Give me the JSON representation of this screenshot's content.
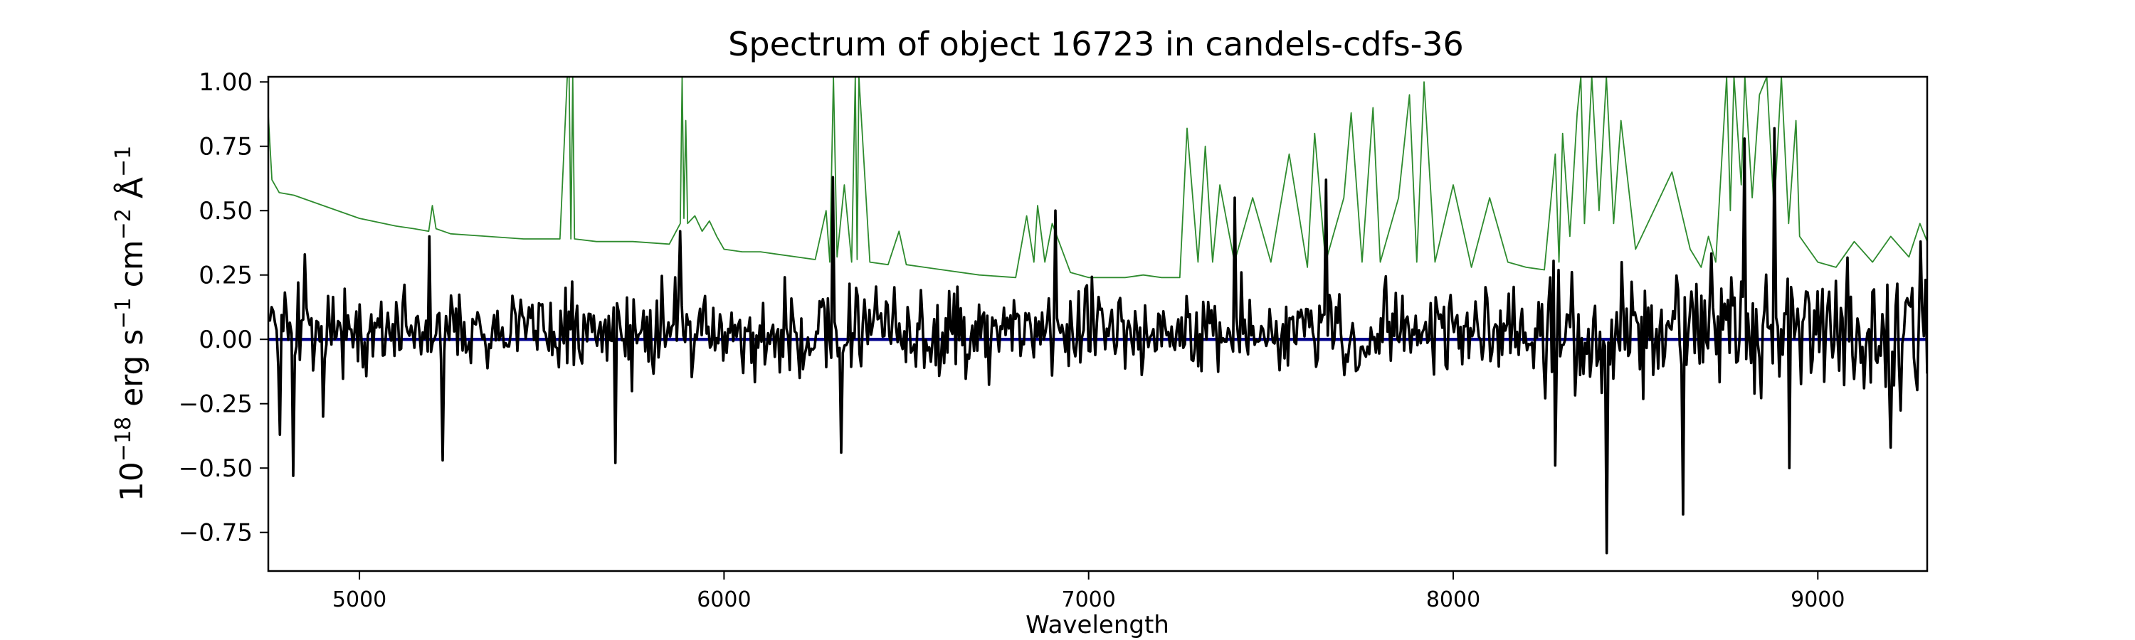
{
  "chart_data": {
    "type": "line",
    "title": "Spectrum of object 16723 in candels-cdfs-36",
    "xlabel": "Wavelength",
    "ylabel_parts": {
      "base": "10",
      "exp": "−18",
      "unit1": " erg s",
      "unit1_exp": "−1",
      "unit2": " cm",
      "unit2_exp": "−2",
      "unit3": " Å",
      "unit3_exp": "−1"
    },
    "xlim": [
      4750,
      9300
    ],
    "ylim": [
      -0.9,
      1.02
    ],
    "xticks": [
      5000,
      6000,
      7000,
      8000,
      9000
    ],
    "xtick_labels": [
      "5000",
      "6000",
      "7000",
      "8000",
      "9000"
    ],
    "yticks": [
      -0.75,
      -0.5,
      -0.25,
      0.0,
      0.25,
      0.5,
      0.75,
      1.0
    ],
    "ytick_labels": [
      "−0.75",
      "−0.50",
      "−0.25",
      "0.00",
      "0.25",
      "0.50",
      "0.75",
      "1.00"
    ],
    "grid": false,
    "legend": "none",
    "series": [
      {
        "role": "error",
        "color": "#2e8b2e",
        "x": [
          4750,
          4760,
          4780,
          4820,
          4900,
          5000,
          5100,
          5150,
          5190,
          5200,
          5210,
          5250,
          5350,
          5450,
          5550,
          5570,
          5575,
          5580,
          5585,
          5590,
          5650,
          5750,
          5850,
          5880,
          5885,
          5890,
          5895,
          5900,
          5920,
          5940,
          5960,
          5980,
          6000,
          6050,
          6100,
          6150,
          6200,
          6250,
          6280,
          6290,
          6300,
          6310,
          6330,
          6350,
          6360,
          6365,
          6370,
          6400,
          6450,
          6480,
          6500,
          6550,
          6600,
          6700,
          6800,
          6830,
          6850,
          6860,
          6880,
          6900,
          6950,
          7000,
          7050,
          7100,
          7150,
          7200,
          7250,
          7270,
          7300,
          7320,
          7340,
          7360,
          7400,
          7450,
          7500,
          7550,
          7600,
          7620,
          7650,
          7700,
          7720,
          7750,
          7780,
          7800,
          7850,
          7880,
          7900,
          7920,
          7950,
          8000,
          8050,
          8100,
          8150,
          8200,
          8250,
          8280,
          8290,
          8300,
          8320,
          8340,
          8350,
          8360,
          8380,
          8400,
          8420,
          8440,
          8460,
          8500,
          8550,
          8600,
          8650,
          8680,
          8700,
          8720,
          8750,
          8760,
          8770,
          8790,
          8800,
          8820,
          8840,
          8860,
          8880,
          8900,
          8920,
          8940,
          8950,
          9000,
          9050,
          9100,
          9150,
          9200,
          9250,
          9280,
          9300
        ],
        "y": [
          0.87,
          0.62,
          0.57,
          0.56,
          0.52,
          0.47,
          0.44,
          0.43,
          0.42,
          0.52,
          0.43,
          0.41,
          0.4,
          0.39,
          0.39,
          1.02,
          1.02,
          0.39,
          1.02,
          0.39,
          0.38,
          0.38,
          0.37,
          0.45,
          1.02,
          0.47,
          0.85,
          0.45,
          0.48,
          0.42,
          0.46,
          0.4,
          0.35,
          0.34,
          0.34,
          0.33,
          0.32,
          0.31,
          0.5,
          0.3,
          1.02,
          0.32,
          0.6,
          0.3,
          1.02,
          0.31,
          1.02,
          0.3,
          0.29,
          0.42,
          0.29,
          0.28,
          0.27,
          0.25,
          0.24,
          0.48,
          0.3,
          0.52,
          0.3,
          0.45,
          0.26,
          0.24,
          0.24,
          0.24,
          0.25,
          0.24,
          0.24,
          0.82,
          0.3,
          0.75,
          0.3,
          0.6,
          0.3,
          0.55,
          0.3,
          0.72,
          0.28,
          0.8,
          0.3,
          0.55,
          0.88,
          0.3,
          0.9,
          0.3,
          0.55,
          0.95,
          0.3,
          1.0,
          0.3,
          0.6,
          0.28,
          0.55,
          0.3,
          0.28,
          0.27,
          0.72,
          0.3,
          0.8,
          0.4,
          0.88,
          1.02,
          0.45,
          1.02,
          0.5,
          1.02,
          0.45,
          0.85,
          0.35,
          0.5,
          0.65,
          0.35,
          0.28,
          0.4,
          0.3,
          1.02,
          0.5,
          1.02,
          0.6,
          1.02,
          0.55,
          0.95,
          1.02,
          0.5,
          1.02,
          0.45,
          0.85,
          0.4,
          0.3,
          0.28,
          0.38,
          0.3,
          0.4,
          0.32,
          0.45,
          0.38
        ]
      },
      {
        "role": "zero-line",
        "color": "#00008b",
        "x": [
          4750,
          9300
        ],
        "y": [
          0.0,
          0.0
        ]
      },
      {
        "role": "flux",
        "color": "#000000",
        "generated": true,
        "x_range": [
          4750,
          9300
        ],
        "n": 1000,
        "noise_amp": 0.16,
        "features": [
          {
            "x": 4780,
            "y": -0.37
          },
          {
            "x": 4820,
            "y": -0.53
          },
          {
            "x": 4850,
            "y": 0.33
          },
          {
            "x": 4900,
            "y": -0.3
          },
          {
            "x": 5190,
            "y": 0.4
          },
          {
            "x": 5230,
            "y": -0.47
          },
          {
            "x": 5700,
            "y": -0.48
          },
          {
            "x": 5880,
            "y": 0.42
          },
          {
            "x": 6300,
            "y": 0.63
          },
          {
            "x": 6320,
            "y": -0.44
          },
          {
            "x": 6910,
            "y": 0.5
          },
          {
            "x": 7400,
            "y": 0.55
          },
          {
            "x": 7650,
            "y": 0.62
          },
          {
            "x": 8280,
            "y": -0.49
          },
          {
            "x": 8420,
            "y": -0.83
          },
          {
            "x": 8630,
            "y": -0.68
          },
          {
            "x": 8800,
            "y": 0.78
          },
          {
            "x": 8880,
            "y": 0.82
          },
          {
            "x": 8920,
            "y": -0.5
          },
          {
            "x": 9200,
            "y": -0.42
          },
          {
            "x": 9280,
            "y": 0.38
          }
        ]
      }
    ]
  }
}
